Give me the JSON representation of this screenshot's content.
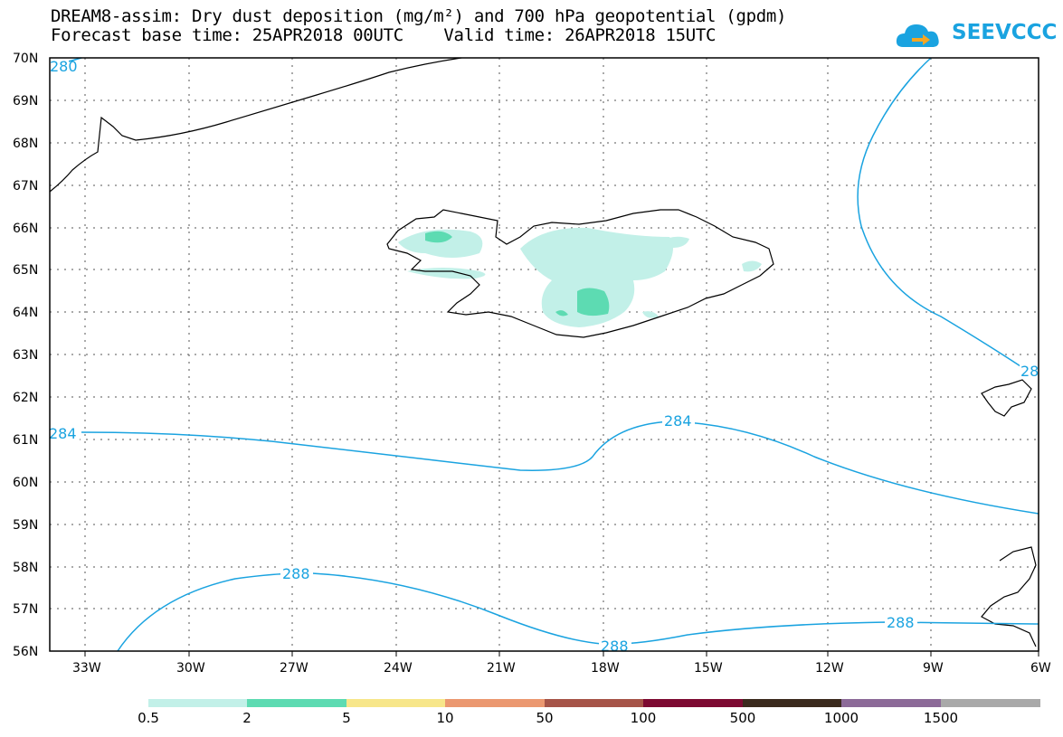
{
  "title": {
    "line1": "DREAM8-assim: Dry dust deposition (mg/m²) and 700 hPa geopotential (gpdm)",
    "line2": "Forecast base time: 25APR2018 00UTC    Valid time: 26APR2018 15UTC"
  },
  "logo": {
    "text": "SEEVCCC",
    "icon": "cloud-arrow-icon",
    "color": "#1aa3e0"
  },
  "map": {
    "lat_labels": [
      "70N",
      "69N",
      "68N",
      "67N",
      "66N",
      "65N",
      "64N",
      "63N",
      "62N",
      "61N",
      "60N",
      "59N",
      "58N",
      "57N",
      "56N"
    ],
    "lon_labels": [
      "33W",
      "30W",
      "27W",
      "24W",
      "21W",
      "18W",
      "15W",
      "12W",
      "9W",
      "6W"
    ],
    "contour_labels": [
      "280",
      "284",
      "284",
      "288",
      "288",
      "288",
      "28"
    ],
    "contour_color": "#1aa3e0"
  },
  "colorbar": {
    "labels": [
      "0.5",
      "2",
      "5",
      "10",
      "50",
      "100",
      "500",
      "1000",
      "1500"
    ],
    "colors": [
      "#c2f0e8",
      "#5ddbb2",
      "#f7e68a",
      "#eb9870",
      "#a65448",
      "#7d0a32",
      "#3b2a1e",
      "#8c6a98",
      "#a9a9a9"
    ]
  }
}
